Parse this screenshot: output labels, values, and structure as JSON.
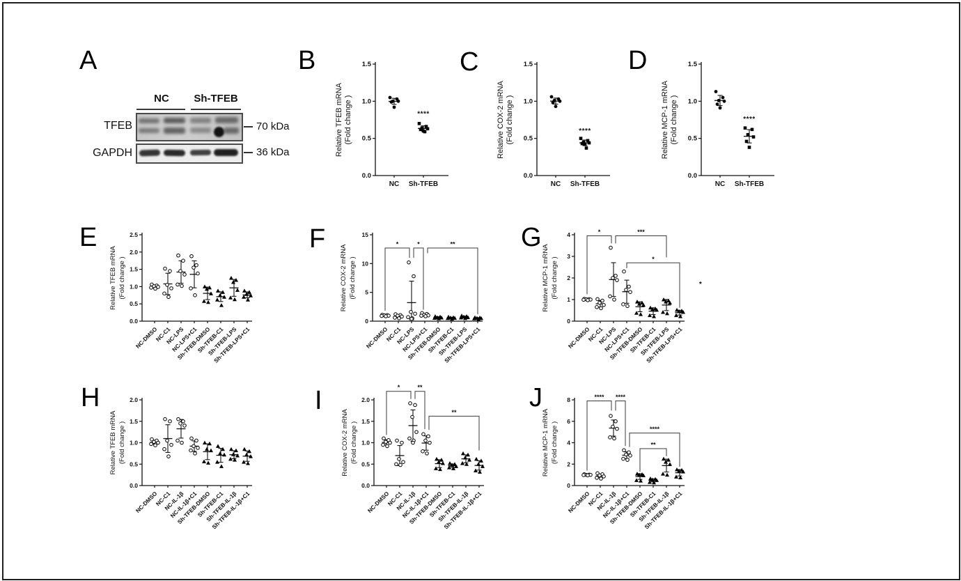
{
  "figure": {
    "panel_letters": [
      "A",
      "B",
      "C",
      "D",
      "E",
      "F",
      "G",
      "H",
      "I",
      "J"
    ]
  },
  "blot": {
    "group_labels": [
      "NC",
      "Sh-TFEB"
    ],
    "rows": [
      {
        "label": "TFEB",
        "marker": "70 kDa"
      },
      {
        "label": "GAPDH",
        "marker": "36 kDa"
      }
    ]
  },
  "chart_data": [
    {
      "id": "B",
      "type": "scatter",
      "ylabel": "Relative TFEB mRNA",
      "ylabel2": "(Fold change )",
      "ylim": [
        0,
        1.5
      ],
      "yticks": [
        0,
        0.5,
        1,
        1.5
      ],
      "ytick_labels": [
        "0.0",
        "0.5",
        "1.0",
        "1.5"
      ],
      "categories": [
        "NC",
        "Sh-TFEB"
      ],
      "markers": [
        "filled-circle",
        "filled-square"
      ],
      "points": [
        [
          1.05,
          1.03,
          1.0,
          1.0,
          0.99,
          0.92
        ],
        [
          0.7,
          0.66,
          0.64,
          0.63,
          0.62,
          0.6,
          0.59
        ]
      ],
      "brackets": [],
      "annotations": [
        {
          "x": 1,
          "y": 0.8,
          "label": "****"
        }
      ]
    },
    {
      "id": "C",
      "type": "scatter",
      "ylabel": "Relative COX-2 mRNA",
      "ylabel2": "(Fold change )",
      "ylim": [
        0,
        1.5
      ],
      "yticks": [
        0,
        0.5,
        1,
        1.5
      ],
      "ytick_labels": [
        "0.0",
        "0.5",
        "1.0",
        "1.5"
      ],
      "categories": [
        "NC",
        "Sh-TFEB"
      ],
      "markers": [
        "filled-circle",
        "filled-square"
      ],
      "points": [
        [
          1.06,
          1.03,
          1.01,
          1.0,
          0.98,
          0.93
        ],
        [
          0.5,
          0.47,
          0.45,
          0.44,
          0.43,
          0.42,
          0.37
        ]
      ],
      "brackets": [],
      "annotations": [
        {
          "x": 1,
          "y": 0.57,
          "label": "****"
        }
      ]
    },
    {
      "id": "D",
      "type": "scatter",
      "ylabel": "Relative MCP-1 mRNA",
      "ylabel2": "(Fold change )",
      "ylim": [
        0,
        1.5
      ],
      "yticks": [
        0,
        0.5,
        1,
        1.5
      ],
      "ytick_labels": [
        "0.0",
        "0.5",
        "1.0",
        "1.5"
      ],
      "categories": [
        "NC",
        "Sh-TFEB"
      ],
      "markers": [
        "filled-circle",
        "filled-square"
      ],
      "points": [
        [
          1.13,
          1.05,
          1.01,
          1.0,
          0.96,
          0.91
        ],
        [
          0.64,
          0.62,
          0.55,
          0.52,
          0.46,
          0.38
        ]
      ],
      "brackets": [],
      "annotations": [
        {
          "x": 1,
          "y": 0.73,
          "label": "****"
        }
      ]
    },
    {
      "id": "E",
      "type": "scatter",
      "ylabel": "Relative TFEB mRNA",
      "ylabel2": "(Fold change )",
      "ylim": [
        0,
        2.5
      ],
      "yticks": [
        0,
        0.5,
        1,
        1.5,
        2,
        2.5
      ],
      "ytick_labels": [
        "0.0",
        "0.5",
        "1.0",
        "1.5",
        "2.0",
        "2.5"
      ],
      "categories": [
        "NC-DMSO",
        "NC-C1",
        "NC-LPS",
        "NC-LPS+C1",
        "Sh-TFEB-DMSO",
        "Sh-TFEB-C1",
        "Sh-TFEB-LPS",
        "Sh-TFEB-LPS+C1"
      ],
      "markers": [
        "open-circle",
        "open-circle",
        "open-circle",
        "open-circle",
        "filled-triangle",
        "filled-triangle",
        "filled-triangle",
        "filled-triangle"
      ],
      "points": [
        [
          1.06,
          1.03,
          1.01,
          0.99,
          0.97,
          0.94
        ],
        [
          1.52,
          1.45,
          1.05,
          0.95,
          0.8,
          0.7
        ],
        [
          1.9,
          1.75,
          1.45,
          1.35,
          1.06,
          1.02
        ],
        [
          1.88,
          1.62,
          1.55,
          1.38,
          0.95,
          0.75
        ],
        [
          1.0,
          0.97,
          0.93,
          0.8,
          0.58,
          0.55
        ],
        [
          0.88,
          0.84,
          0.75,
          0.7,
          0.62,
          0.46
        ],
        [
          1.25,
          1.19,
          1.13,
          0.9,
          0.68,
          0.63
        ],
        [
          0.88,
          0.84,
          0.78,
          0.74,
          0.7,
          0.62
        ]
      ],
      "brackets": [],
      "annotations": []
    },
    {
      "id": "F",
      "type": "scatter",
      "ylabel": "Relative COX-2 mRNA",
      "ylabel2": "(Fold change )",
      "ylim": [
        0,
        15
      ],
      "yticks": [
        0,
        5,
        10,
        15
      ],
      "ytick_labels": [
        "0",
        "5",
        "10",
        "15"
      ],
      "categories": [
        "NC-DMSO",
        "NC-C1",
        "NC-LPS",
        "NC-LPS+C1",
        "Sh-TFEB-DMSO",
        "Sh-TFEB-C1",
        "Sh-TFEB-LPS",
        "Sh-TFEB-LPS+C1"
      ],
      "markers": [
        "open-circle",
        "open-circle",
        "open-circle",
        "open-circle",
        "filled-triangle",
        "filled-triangle",
        "filled-triangle",
        "filled-triangle"
      ],
      "points": [
        [
          1.1,
          1.05,
          1.0,
          0.95,
          0.9,
          0.85
        ],
        [
          1.2,
          1.05,
          0.95,
          0.8,
          0.6,
          0.5
        ],
        [
          10.2,
          7.8,
          1.6,
          1.3,
          0.7,
          0.5,
          0.4
        ],
        [
          1.4,
          1.25,
          1.1,
          1.0,
          0.95,
          0.85
        ],
        [
          0.85,
          0.75,
          0.65,
          0.6,
          0.55,
          0.45
        ],
        [
          0.75,
          0.65,
          0.6,
          0.55,
          0.5,
          0.4
        ],
        [
          0.95,
          0.85,
          0.75,
          0.65,
          0.6,
          0.5
        ],
        [
          0.65,
          0.6,
          0.55,
          0.5,
          0.45,
          0.35
        ]
      ],
      "brackets": [
        {
          "x1": 0,
          "x2": 2,
          "ox2": -3,
          "y": 12.7,
          "d1": 1.8,
          "d2": 11.0,
          "label": "*"
        },
        {
          "x1": 2,
          "ox1": 3,
          "x2": 3,
          "ox2": -2,
          "y": 12.7,
          "d1": 11.0,
          "d2": 2.0,
          "label": "*"
        },
        {
          "x1": 3,
          "ox1": 4,
          "x2": 7,
          "y": 12.7,
          "d1": 11.8,
          "d2": 1.2,
          "label": "**"
        }
      ],
      "annotations": []
    },
    {
      "id": "G",
      "type": "scatter",
      "ylabel": "Relative MCP-1 mRNA",
      "ylabel2": "(Fold change )",
      "ylim": [
        0,
        4
      ],
      "yticks": [
        0,
        1,
        2,
        3,
        4
      ],
      "ytick_labels": [
        "0",
        "1",
        "2",
        "3",
        "4"
      ],
      "categories": [
        "NC-DMSO",
        "NC-C1",
        "NC-LPS",
        "NC-LPS+C1",
        "Sh-TFEB-DMSO",
        "Sh-TFEB-C1",
        "Sh-TFEB-LPS",
        "Sh-TFEB-LPS+C1"
      ],
      "markers": [
        "open-circle",
        "open-circle",
        "open-circle",
        "open-circle",
        "filled-triangle",
        "filled-triangle",
        "filled-triangle",
        "filled-triangle"
      ],
      "points": [
        [
          1.03,
          1.02,
          1.01,
          1.0,
          0.99,
          0.97
        ],
        [
          1.02,
          0.95,
          0.85,
          0.75,
          0.65,
          0.6
        ],
        [
          3.4,
          2.1,
          2.0,
          1.9,
          1.15,
          1.0
        ],
        [
          2.3,
          1.6,
          1.45,
          1.35,
          0.78,
          0.7
        ],
        [
          0.9,
          0.85,
          0.8,
          0.75,
          0.38,
          0.32
        ],
        [
          0.62,
          0.58,
          0.55,
          0.52,
          0.27,
          0.22
        ],
        [
          1.0,
          0.95,
          0.9,
          0.85,
          0.42,
          0.36
        ],
        [
          0.52,
          0.48,
          0.45,
          0.42,
          0.27,
          0.22
        ]
      ],
      "brackets": [
        {
          "x1": 0,
          "x2": 2,
          "ox2": -3,
          "y": 3.95,
          "d1": 1.25,
          "d2": 3.6,
          "label": "*"
        },
        {
          "x1": 2,
          "ox1": 3,
          "x2": 6,
          "y": 3.95,
          "d1": 3.6,
          "d2": 2.95,
          "label": "***"
        },
        {
          "x1": 3,
          "x2": 7,
          "y": 2.7,
          "d1": 2.45,
          "d2": 0.62,
          "label": "*"
        }
      ],
      "annotations": [
        {
          "x": 8.58,
          "y": 1.62,
          "label": "*",
          "color": "#bb2222"
        }
      ]
    },
    {
      "id": "H",
      "type": "scatter",
      "ylabel": "Relative TFEB mRNA",
      "ylabel2": "(Fold change )",
      "ylim": [
        0,
        2
      ],
      "yticks": [
        0,
        0.5,
        1,
        1.5,
        2
      ],
      "ytick_labels": [
        "0.0",
        "0.5",
        "1.0",
        "1.5",
        "2.0"
      ],
      "categories": [
        "NC-DMSO",
        "NC-C1",
        "NC-IL-1β",
        "NC-IL-1β+C1",
        "Sh-TFEB-DMSO",
        "Sh-TFEB-C1",
        "Sh-TFEB-IL-1β",
        "Sh-TFEB-IL-1β+C1"
      ],
      "markers": [
        "open-circle",
        "open-circle",
        "open-circle",
        "open-circle",
        "filled-triangle",
        "filled-triangle",
        "filled-triangle",
        "filled-triangle"
      ],
      "points": [
        [
          1.08,
          1.05,
          1.02,
          1.0,
          0.97,
          0.94
        ],
        [
          1.55,
          1.5,
          1.05,
          0.95,
          0.85,
          0.68
        ],
        [
          1.55,
          1.5,
          1.45,
          1.4,
          1.05,
          1.0
        ],
        [
          1.1,
          1.05,
          0.92,
          0.88,
          0.82,
          0.75
        ],
        [
          1.0,
          0.98,
          0.85,
          0.82,
          0.56,
          0.53
        ],
        [
          0.92,
          0.85,
          0.75,
          0.72,
          0.55,
          0.45
        ],
        [
          0.85,
          0.82,
          0.73,
          0.7,
          0.62,
          0.6
        ],
        [
          0.85,
          0.8,
          0.72,
          0.68,
          0.55,
          0.52
        ]
      ],
      "brackets": [],
      "annotations": []
    },
    {
      "id": "I",
      "type": "scatter",
      "ylabel": "Relative COX-2 mRNA",
      "ylabel2": "(Fold change )",
      "ylim": [
        0,
        2
      ],
      "yticks": [
        0,
        0.5,
        1,
        1.5,
        2
      ],
      "ytick_labels": [
        "0.0",
        "0.5",
        "1.0",
        "1.5",
        "2.0"
      ],
      "categories": [
        "NC-DMSO",
        "NC-C1",
        "NC-IL-1β",
        "NC-IL-1β+C1",
        "Sh-TFEB-DMSO",
        "Sh-TFEB-C1",
        "Sh-TFEB-IL-1β",
        "Sh-TFEB-IL-1β+C1"
      ],
      "markers": [
        "open-circle",
        "open-circle",
        "open-circle",
        "open-circle",
        "filled-triangle",
        "filled-triangle",
        "filled-triangle",
        "filled-triangle"
      ],
      "points": [
        [
          1.1,
          1.06,
          1.02,
          1.0,
          0.95,
          0.92
        ],
        [
          1.05,
          1.0,
          0.62,
          0.55,
          0.5,
          0.48
        ],
        [
          1.92,
          1.88,
          1.6,
          1.25,
          1.1,
          1.05,
          1.0
        ],
        [
          1.2,
          1.15,
          1.05,
          1.0,
          0.8,
          0.75
        ],
        [
          0.62,
          0.6,
          0.55,
          0.52,
          0.4,
          0.38
        ],
        [
          0.52,
          0.5,
          0.48,
          0.45,
          0.42,
          0.4
        ],
        [
          0.75,
          0.72,
          0.65,
          0.6,
          0.52,
          0.5
        ],
        [
          0.62,
          0.58,
          0.5,
          0.45,
          0.35,
          0.32
        ]
      ],
      "brackets": [
        {
          "x1": 0,
          "x2": 2,
          "ox2": -3,
          "y": 2.2,
          "d1": 1.18,
          "d2": 2.02,
          "label": "*"
        },
        {
          "x1": 2,
          "ox1": 3,
          "x2": 3,
          "ox2": -2,
          "y": 2.2,
          "d1": 2.02,
          "d2": 1.32,
          "label": "**"
        },
        {
          "x1": 3,
          "ox1": 4,
          "x2": 7,
          "y": 1.62,
          "d1": 1.3,
          "d2": 0.82,
          "label": "**"
        }
      ],
      "annotations": []
    },
    {
      "id": "J",
      "type": "scatter",
      "ylabel": "Relative MCP-1 mRNA",
      "ylabel2": "(Fold change )",
      "ylim": [
        0,
        8
      ],
      "yticks": [
        0,
        2,
        4,
        6,
        8
      ],
      "ytick_labels": [
        "0",
        "2",
        "4",
        "6",
        "8"
      ],
      "categories": [
        "NC-DMSO",
        "NC-C1",
        "NC-IL-1β",
        "NC-IL-1β+C1",
        "Sh-TFEB-DMSO",
        "Sh-TFEB-C1",
        "Sh-TFEB-IL-1β",
        "Sh-TFEB-IL-1β+C1"
      ],
      "markers": [
        "open-circle",
        "open-circle",
        "open-circle",
        "open-circle",
        "filled-triangle",
        "filled-triangle",
        "filled-triangle",
        "filled-triangle"
      ],
      "points": [
        [
          1.05,
          1.02,
          1.0,
          1.0,
          0.98,
          0.96
        ],
        [
          1.15,
          1.05,
          0.95,
          0.85,
          0.72,
          0.65
        ],
        [
          6.5,
          6.0,
          5.5,
          5.3,
          4.5,
          4.4
        ],
        [
          3.3,
          3.1,
          2.9,
          2.8,
          2.5,
          2.4
        ],
        [
          1.1,
          1.05,
          1.0,
          0.95,
          0.5,
          0.45
        ],
        [
          0.65,
          0.6,
          0.55,
          0.5,
          0.32,
          0.28
        ],
        [
          2.5,
          2.4,
          2.2,
          2.0,
          1.1,
          1.0
        ],
        [
          1.5,
          1.45,
          1.35,
          1.3,
          0.82,
          0.75
        ]
      ],
      "brackets": [
        {
          "x1": 0,
          "x2": 2,
          "ox2": -3,
          "y": 7.9,
          "d1": 1.4,
          "d2": 7.0,
          "label": "****"
        },
        {
          "x1": 2,
          "ox1": 3,
          "x2": 3,
          "ox2": -2,
          "y": 7.9,
          "d1": 7.0,
          "d2": 3.7,
          "label": "****"
        },
        {
          "x1": 3,
          "ox1": 4,
          "x2": 7,
          "y": 4.9,
          "d1": 3.6,
          "d2": 1.75,
          "label": "****"
        },
        {
          "x1": 4,
          "x2": 6,
          "y": 3.45,
          "d1": 1.3,
          "d2": 2.75,
          "label": "**"
        }
      ],
      "annotations": []
    }
  ]
}
